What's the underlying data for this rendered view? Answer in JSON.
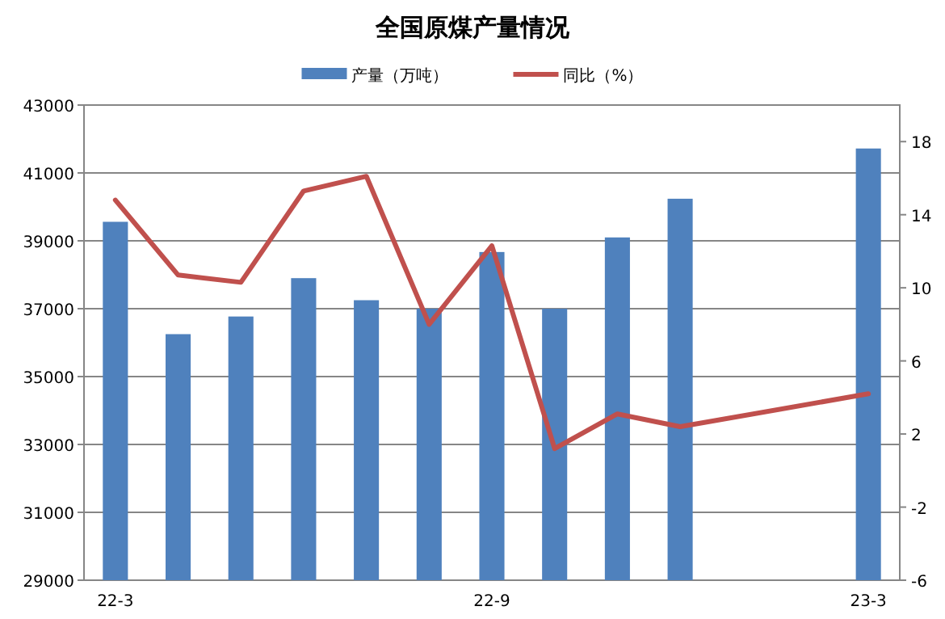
{
  "chart_data": {
    "type": "bar",
    "title": "全国原煤产量情况",
    "categories": [
      "22-3",
      null,
      null,
      null,
      null,
      null,
      "22-9",
      null,
      null,
      null,
      null,
      null,
      "23-3"
    ],
    "series": [
      {
        "name": "产量（万吨）",
        "color": "#4f81bd",
        "values": [
          39560,
          36250,
          36770,
          37900,
          37250,
          37000,
          38670,
          37000,
          39100,
          40240,
          null,
          null,
          41720
        ]
      },
      {
        "name": "同比（%）",
        "type": "line",
        "axis": "y2",
        "color": "#c0504d",
        "values": [
          14.8,
          10.7,
          10.3,
          15.3,
          16.1,
          8.0,
          12.3,
          1.2,
          3.1,
          2.4,
          null,
          null,
          4.2
        ]
      }
    ],
    "ylim": [
      29000,
      43000
    ],
    "yticks": [
      29000,
      31000,
      33000,
      35000,
      37000,
      39000,
      41000,
      43000
    ],
    "y2lim": [
      -6,
      20
    ],
    "y2ticks": [
      -6,
      -2,
      2,
      6,
      10,
      14,
      18
    ],
    "grid": "y",
    "legend": "top",
    "marker": "none",
    "line_style": "solid"
  }
}
